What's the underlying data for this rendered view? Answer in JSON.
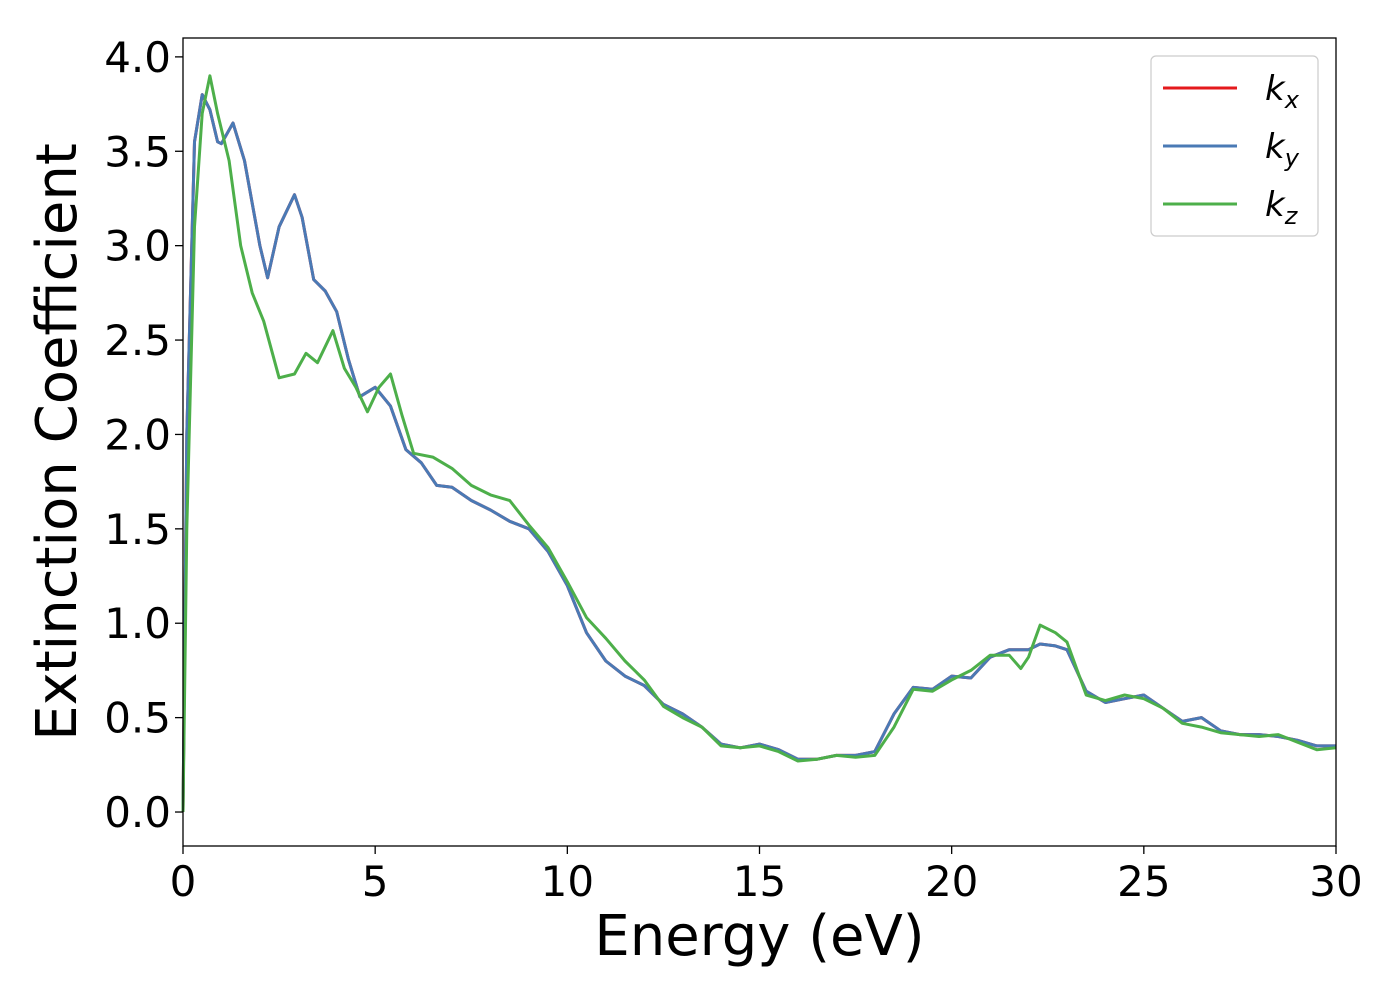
{
  "chart_data": {
    "type": "line",
    "title": "",
    "xlabel": "Energy (eV)",
    "ylabel": "Extinction Coefficient",
    "xlim": [
      0,
      30
    ],
    "ylim": [
      -0.18,
      4.1
    ],
    "xticks": [
      "0",
      "5",
      "10",
      "15",
      "20",
      "25",
      "30"
    ],
    "yticks": [
      "0.0",
      "0.5",
      "1.0",
      "1.5",
      "2.0",
      "2.5",
      "3.0",
      "3.5",
      "4.0"
    ],
    "grid": false,
    "legend_position": "top-right",
    "series": [
      {
        "name": "k_x",
        "label_base": "k",
        "label_sub": "x",
        "color": "#e41a1c",
        "points": [
          [
            0,
            0.0
          ],
          [
            0.1,
            2.0
          ],
          [
            0.3,
            3.55
          ],
          [
            0.5,
            3.8
          ],
          [
            0.7,
            3.72
          ],
          [
            0.9,
            3.55
          ],
          [
            1.0,
            3.54
          ],
          [
            1.3,
            3.65
          ],
          [
            1.6,
            3.45
          ],
          [
            2.0,
            3.0
          ],
          [
            2.2,
            2.83
          ],
          [
            2.5,
            3.1
          ],
          [
            2.9,
            3.27
          ],
          [
            3.1,
            3.15
          ],
          [
            3.4,
            2.82
          ],
          [
            3.7,
            2.76
          ],
          [
            4.0,
            2.65
          ],
          [
            4.3,
            2.4
          ],
          [
            4.6,
            2.2
          ],
          [
            5.0,
            2.25
          ],
          [
            5.4,
            2.15
          ],
          [
            5.8,
            1.92
          ],
          [
            6.2,
            1.85
          ],
          [
            6.6,
            1.73
          ],
          [
            7.0,
            1.72
          ],
          [
            7.5,
            1.65
          ],
          [
            8.0,
            1.6
          ],
          [
            8.5,
            1.54
          ],
          [
            9.0,
            1.5
          ],
          [
            9.5,
            1.38
          ],
          [
            10.0,
            1.2
          ],
          [
            10.5,
            0.95
          ],
          [
            11.0,
            0.8
          ],
          [
            11.5,
            0.72
          ],
          [
            12.0,
            0.67
          ],
          [
            12.5,
            0.57
          ],
          [
            13.0,
            0.52
          ],
          [
            13.5,
            0.45
          ],
          [
            14.0,
            0.36
          ],
          [
            14.5,
            0.34
          ],
          [
            15.0,
            0.36
          ],
          [
            15.5,
            0.33
          ],
          [
            16.0,
            0.28
          ],
          [
            16.5,
            0.28
          ],
          [
            17.0,
            0.3
          ],
          [
            17.5,
            0.3
          ],
          [
            18.0,
            0.32
          ],
          [
            18.5,
            0.52
          ],
          [
            19.0,
            0.66
          ],
          [
            19.5,
            0.65
          ],
          [
            20.0,
            0.72
          ],
          [
            20.5,
            0.71
          ],
          [
            21.0,
            0.82
          ],
          [
            21.5,
            0.86
          ],
          [
            22.0,
            0.86
          ],
          [
            22.3,
            0.89
          ],
          [
            22.7,
            0.88
          ],
          [
            23.0,
            0.86
          ],
          [
            23.5,
            0.64
          ],
          [
            24.0,
            0.58
          ],
          [
            24.5,
            0.6
          ],
          [
            25.0,
            0.62
          ],
          [
            25.5,
            0.55
          ],
          [
            26.0,
            0.48
          ],
          [
            26.5,
            0.5
          ],
          [
            27.0,
            0.43
          ],
          [
            27.5,
            0.41
          ],
          [
            28.0,
            0.41
          ],
          [
            28.5,
            0.4
          ],
          [
            29.0,
            0.38
          ],
          [
            29.5,
            0.35
          ],
          [
            30.0,
            0.35
          ]
        ]
      },
      {
        "name": "k_y",
        "label_base": "k",
        "label_sub": "y",
        "color": "#4a7ab5",
        "points": [
          [
            0,
            0.0
          ],
          [
            0.1,
            2.0
          ],
          [
            0.3,
            3.55
          ],
          [
            0.5,
            3.8
          ],
          [
            0.7,
            3.72
          ],
          [
            0.9,
            3.55
          ],
          [
            1.0,
            3.54
          ],
          [
            1.3,
            3.65
          ],
          [
            1.6,
            3.45
          ],
          [
            2.0,
            3.0
          ],
          [
            2.2,
            2.83
          ],
          [
            2.5,
            3.1
          ],
          [
            2.9,
            3.27
          ],
          [
            3.1,
            3.15
          ],
          [
            3.4,
            2.82
          ],
          [
            3.7,
            2.76
          ],
          [
            4.0,
            2.65
          ],
          [
            4.3,
            2.4
          ],
          [
            4.6,
            2.2
          ],
          [
            5.0,
            2.25
          ],
          [
            5.4,
            2.15
          ],
          [
            5.8,
            1.92
          ],
          [
            6.2,
            1.85
          ],
          [
            6.6,
            1.73
          ],
          [
            7.0,
            1.72
          ],
          [
            7.5,
            1.65
          ],
          [
            8.0,
            1.6
          ],
          [
            8.5,
            1.54
          ],
          [
            9.0,
            1.5
          ],
          [
            9.5,
            1.38
          ],
          [
            10.0,
            1.2
          ],
          [
            10.5,
            0.95
          ],
          [
            11.0,
            0.8
          ],
          [
            11.5,
            0.72
          ],
          [
            12.0,
            0.67
          ],
          [
            12.5,
            0.57
          ],
          [
            13.0,
            0.52
          ],
          [
            13.5,
            0.45
          ],
          [
            14.0,
            0.36
          ],
          [
            14.5,
            0.34
          ],
          [
            15.0,
            0.36
          ],
          [
            15.5,
            0.33
          ],
          [
            16.0,
            0.28
          ],
          [
            16.5,
            0.28
          ],
          [
            17.0,
            0.3
          ],
          [
            17.5,
            0.3
          ],
          [
            18.0,
            0.32
          ],
          [
            18.5,
            0.52
          ],
          [
            19.0,
            0.66
          ],
          [
            19.5,
            0.65
          ],
          [
            20.0,
            0.72
          ],
          [
            20.5,
            0.71
          ],
          [
            21.0,
            0.82
          ],
          [
            21.5,
            0.86
          ],
          [
            22.0,
            0.86
          ],
          [
            22.3,
            0.89
          ],
          [
            22.7,
            0.88
          ],
          [
            23.0,
            0.86
          ],
          [
            23.5,
            0.64
          ],
          [
            24.0,
            0.58
          ],
          [
            24.5,
            0.6
          ],
          [
            25.0,
            0.62
          ],
          [
            25.5,
            0.55
          ],
          [
            26.0,
            0.48
          ],
          [
            26.5,
            0.5
          ],
          [
            27.0,
            0.43
          ],
          [
            27.5,
            0.41
          ],
          [
            28.0,
            0.41
          ],
          [
            28.5,
            0.4
          ],
          [
            29.0,
            0.38
          ],
          [
            29.5,
            0.35
          ],
          [
            30.0,
            0.35
          ]
        ]
      },
      {
        "name": "k_z",
        "label_base": "k",
        "label_sub": "z",
        "color": "#4daf4a",
        "points": [
          [
            0,
            0.0
          ],
          [
            0.1,
            1.5
          ],
          [
            0.3,
            3.1
          ],
          [
            0.5,
            3.7
          ],
          [
            0.7,
            3.9
          ],
          [
            0.9,
            3.7
          ],
          [
            1.2,
            3.45
          ],
          [
            1.5,
            3.0
          ],
          [
            1.8,
            2.75
          ],
          [
            2.1,
            2.6
          ],
          [
            2.5,
            2.3
          ],
          [
            2.9,
            2.32
          ],
          [
            3.2,
            2.43
          ],
          [
            3.5,
            2.38
          ],
          [
            3.9,
            2.55
          ],
          [
            4.2,
            2.35
          ],
          [
            4.5,
            2.25
          ],
          [
            4.8,
            2.12
          ],
          [
            5.1,
            2.25
          ],
          [
            5.4,
            2.32
          ],
          [
            5.7,
            2.1
          ],
          [
            6.0,
            1.9
          ],
          [
            6.5,
            1.88
          ],
          [
            7.0,
            1.82
          ],
          [
            7.5,
            1.73
          ],
          [
            8.0,
            1.68
          ],
          [
            8.5,
            1.65
          ],
          [
            9.0,
            1.52
          ],
          [
            9.5,
            1.4
          ],
          [
            10.0,
            1.22
          ],
          [
            10.5,
            1.03
          ],
          [
            11.0,
            0.92
          ],
          [
            11.5,
            0.8
          ],
          [
            12.0,
            0.7
          ],
          [
            12.5,
            0.56
          ],
          [
            13.0,
            0.5
          ],
          [
            13.5,
            0.45
          ],
          [
            14.0,
            0.35
          ],
          [
            14.5,
            0.34
          ],
          [
            15.0,
            0.35
          ],
          [
            15.5,
            0.32
          ],
          [
            16.0,
            0.27
          ],
          [
            16.5,
            0.28
          ],
          [
            17.0,
            0.3
          ],
          [
            17.5,
            0.29
          ],
          [
            18.0,
            0.3
          ],
          [
            18.5,
            0.45
          ],
          [
            19.0,
            0.65
          ],
          [
            19.5,
            0.64
          ],
          [
            20.0,
            0.7
          ],
          [
            20.5,
            0.75
          ],
          [
            21.0,
            0.83
          ],
          [
            21.5,
            0.83
          ],
          [
            21.8,
            0.76
          ],
          [
            22.0,
            0.82
          ],
          [
            22.3,
            0.99
          ],
          [
            22.7,
            0.95
          ],
          [
            23.0,
            0.9
          ],
          [
            23.5,
            0.62
          ],
          [
            24.0,
            0.59
          ],
          [
            24.5,
            0.62
          ],
          [
            25.0,
            0.6
          ],
          [
            25.5,
            0.55
          ],
          [
            26.0,
            0.47
          ],
          [
            26.5,
            0.45
          ],
          [
            27.0,
            0.42
          ],
          [
            27.5,
            0.41
          ],
          [
            28.0,
            0.4
          ],
          [
            28.5,
            0.41
          ],
          [
            29.0,
            0.37
          ],
          [
            29.5,
            0.33
          ],
          [
            30.0,
            0.34
          ]
        ]
      }
    ]
  }
}
